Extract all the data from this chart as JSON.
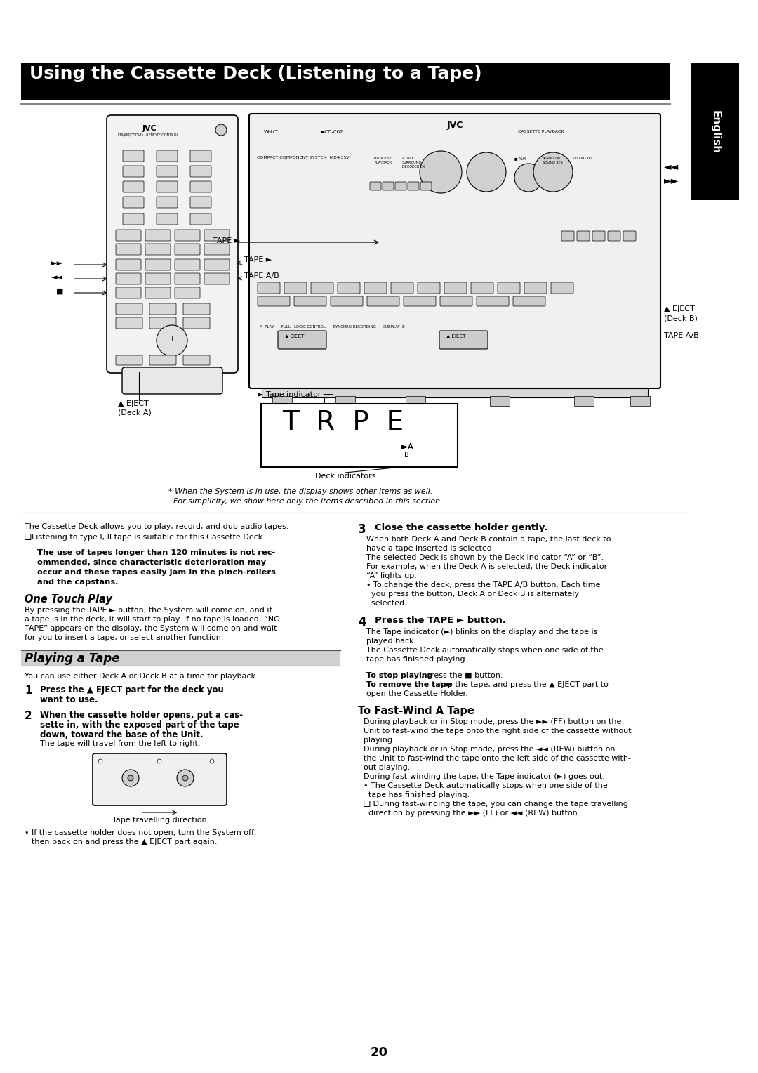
{
  "bg_color": "#ffffff",
  "page_width": 10.8,
  "page_height": 15.28,
  "title_text": "Using the Cassette Deck (Listening to a Tape)",
  "footnote1": "* When the System is in use, the display shows other items as well.",
  "footnote2": "  For simplicity, we show here only the items described in this section.",
  "tape_travelling": "Tape travelling direction",
  "page_number": "20",
  "one_touch_play_lines": [
    "By pressing the TAPE ► button, the System will come on, and if",
    "a tape is in the deck, it will start to play. If no tape is loaded, “NO",
    "TAPE” appears on the display, the System will come on and wait",
    "for you to insert a tape, or select another function."
  ],
  "s3_lines": [
    "When both Deck A and Deck B contain a tape, the last deck to",
    "have a tape inserted is selected.",
    "The selected Deck is shown by the Deck indicator “A” or “B”.",
    "For example, when the Deck A is selected, the Deck indicator",
    "“A” lights up.",
    "• To change the deck, press the TAPE A/B button. Each time",
    "  you press the button, Deck A or Deck B is alternately",
    "  selected."
  ],
  "s4_lines": [
    "The Tape indicator (►) blinks on the display and the tape is",
    "played back.",
    "The Cassette Deck automatically stops when one side of the",
    "tape has finished playing."
  ],
  "fw_lines": [
    "During playback or in Stop mode, press the ►► (FF) button on the",
    "Unit to fast-wind the tape onto the right side of the cassette without",
    "playing.",
    "During playback or in Stop mode, press the ◄◄ (REW) button on",
    "the Unit to fast-wind the tape onto the left side of the cassette with-",
    "out playing.",
    "During fast-winding the tape, the Tape indicator (►) goes out.",
    "• The Cassette Deck automatically stops when one side of the",
    "  tape has finished playing.",
    "❑ During fast-winding the tape, you can change the tape travelling",
    "  direction by pressing the ►► (FF) or ◄◄ (REW) button."
  ]
}
